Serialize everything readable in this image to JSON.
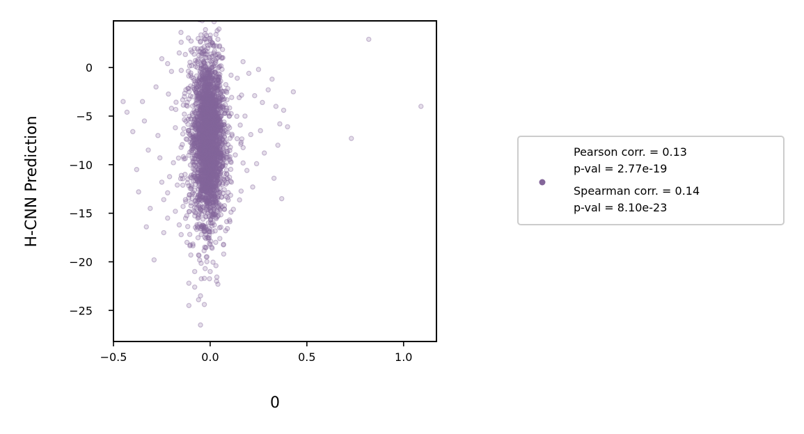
{
  "chart_data": {
    "type": "scatter",
    "xlabel": "0",
    "ylabel": "H-CNN Prediction",
    "xlim": [
      -0.5,
      1.17
    ],
    "ylim": [
      -28.2,
      4.8
    ],
    "xticks": [
      -0.5,
      0.0,
      0.5,
      1.0
    ],
    "xtick_labels": [
      "−0.5",
      "0.0",
      "0.5",
      "1.0"
    ],
    "yticks": [
      0,
      -5,
      -10,
      -15,
      -20,
      -25
    ],
    "ytick_labels": [
      "0",
      "−5",
      "−10",
      "−15",
      "−20",
      "−25"
    ],
    "grid": false,
    "legend_position": "right",
    "color": "#84669a",
    "legend": {
      "lines": [
        "Pearson corr. = 0.13",
        "p-val = 2.77e-19",
        "Spearman corr. = 0.14",
        "p-val = 8.10e-23"
      ]
    },
    "series": [
      {
        "points": [
          [
            0.82,
            2.9
          ],
          [
            1.09,
            -4.0
          ],
          [
            0.73,
            -7.3
          ],
          [
            0.43,
            -2.5
          ],
          [
            0.38,
            -4.4
          ],
          [
            0.36,
            -5.8
          ],
          [
            0.4,
            -6.1
          ],
          [
            0.35,
            -8.0
          ],
          [
            0.37,
            -13.5
          ],
          [
            0.33,
            -11.4
          ],
          [
            0.32,
            -1.2
          ],
          [
            0.3,
            -2.3
          ],
          [
            0.27,
            -3.6
          ],
          [
            0.26,
            -6.5
          ],
          [
            0.24,
            -9.9
          ],
          [
            0.22,
            -12.3
          ],
          [
            0.2,
            -0.6
          ],
          [
            0.17,
            0.6
          ],
          [
            0.14,
            -1.1
          ],
          [
            0.12,
            -14.6
          ],
          [
            -0.25,
            0.9
          ],
          [
            -0.22,
            0.4
          ],
          [
            -0.2,
            -0.4
          ],
          [
            -0.16,
            1.5
          ],
          [
            -0.05,
            2.7
          ],
          [
            -0.02,
            3.3
          ],
          [
            0.0,
            3.0
          ],
          [
            0.04,
            2.9
          ],
          [
            -0.15,
            2.6
          ],
          [
            -0.1,
            1.8
          ],
          [
            -0.45,
            -3.5
          ],
          [
            -0.43,
            -4.6
          ],
          [
            -0.4,
            -6.6
          ],
          [
            -0.38,
            -10.5
          ],
          [
            -0.37,
            -12.8
          ],
          [
            -0.35,
            -3.5
          ],
          [
            -0.34,
            -5.5
          ],
          [
            -0.32,
            -8.5
          ],
          [
            -0.31,
            -14.5
          ],
          [
            -0.33,
            -16.4
          ],
          [
            -0.28,
            -2.0
          ],
          [
            -0.27,
            -7.0
          ],
          [
            -0.26,
            -9.3
          ],
          [
            -0.25,
            -11.8
          ],
          [
            -0.24,
            -13.6
          ],
          [
            -0.22,
            -15.5
          ],
          [
            -0.2,
            -4.2
          ],
          [
            -0.18,
            -6.2
          ],
          [
            -0.17,
            -12.1
          ],
          [
            -0.16,
            -16.2
          ],
          [
            -0.29,
            -19.8
          ],
          [
            -0.24,
            -17.0
          ],
          [
            -0.22,
            -12.9
          ],
          [
            -0.19,
            -9.8
          ],
          [
            -0.18,
            -14.8
          ],
          [
            -0.15,
            -17.2
          ],
          [
            -0.12,
            -18.0
          ],
          [
            -0.1,
            -19.3
          ],
          [
            -0.08,
            -21.0
          ],
          [
            -0.11,
            -22.2
          ],
          [
            -0.08,
            -22.6
          ],
          [
            -0.05,
            -23.5
          ],
          [
            -0.11,
            -24.5
          ],
          [
            -0.05,
            -26.5
          ],
          [
            -0.06,
            -23.9
          ],
          [
            0.0,
            -21.0
          ],
          [
            0.03,
            -20.4
          ],
          [
            -0.02,
            -19.5
          ],
          [
            0.01,
            -18.6
          ],
          [
            0.05,
            -17.6
          ],
          [
            0.08,
            -16.8
          ],
          [
            0.1,
            -15.7
          ],
          [
            0.04,
            -22.3
          ],
          [
            -0.03,
            -21.7
          ],
          [
            0.07,
            -19.2
          ],
          [
            0.15,
            -3.1
          ],
          [
            0.16,
            -7.7
          ],
          [
            0.18,
            -5.0
          ],
          [
            0.19,
            -10.6
          ],
          [
            0.11,
            -11.8
          ],
          [
            0.13,
            -9.0
          ],
          [
            0.09,
            -13.4
          ],
          [
            -0.14,
            -14.3
          ],
          [
            -0.13,
            -11.0
          ],
          [
            -0.12,
            -7.4
          ],
          [
            0.25,
            -0.2
          ],
          [
            0.23,
            -2.9
          ],
          [
            0.28,
            -8.8
          ],
          [
            0.21,
            -6.9
          ],
          [
            0.34,
            -4.0
          ]
        ]
      }
    ]
  }
}
